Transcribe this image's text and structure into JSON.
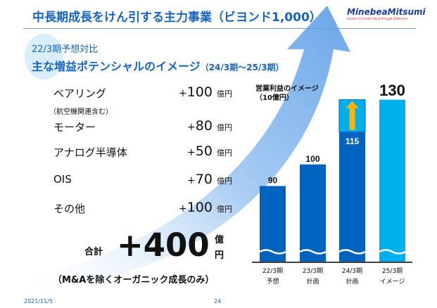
{
  "header": {
    "title": "中長期成長をけん引する主力事業（ビヨンド1,000）",
    "logo_name": "MinebeaMitsumi",
    "logo_tagline": "Passion to Create Value through Difference"
  },
  "subtitle1": "22/3期予想対比",
  "subtitle2": "主な増益ポテンシャルのイメージ",
  "subtitle2_period": "（24/3期～25/3期）",
  "items": [
    {
      "label": "ベアリング",
      "note": "（航空機関連含む）",
      "sign": "+",
      "value": "100",
      "unit": "億円"
    },
    {
      "label": "モーター",
      "sign": "+",
      "value": "80",
      "unit": "億円"
    },
    {
      "label": "アナログ半導体",
      "sign": "+",
      "value": "50",
      "unit": "億円"
    },
    {
      "label": "OIS",
      "sign": "+",
      "value": "70",
      "unit": "億円"
    },
    {
      "label": "その他",
      "sign": "+",
      "value": "100",
      "unit": "億円"
    }
  ],
  "total": {
    "label": "合計",
    "value": "+400",
    "unit1": "億",
    "unit2": "円"
  },
  "footnote": "（M&Aを除くオーガニック成長のみ）",
  "footer": {
    "date": "2021/11/5",
    "page": "24"
  },
  "colors": {
    "dark_bar": "#0063be",
    "light_bar": "#00b0ec",
    "arrow": "#ffb400",
    "title": "#1565c0"
  },
  "chart_data": {
    "type": "bar",
    "title": "営業利益のイメージ",
    "ylabel": "（10億円）",
    "categories": [
      [
        "22/3期",
        "予想"
      ],
      [
        "23/3期",
        "計画"
      ],
      [
        "24/3期",
        "計画"
      ],
      [
        "25/3期",
        "イメージ"
      ]
    ],
    "values": [
      90,
      100,
      115,
      130
    ],
    "labels": [
      "90",
      "100",
      "115",
      "130"
    ],
    "upside_on": "24/3期",
    "upside_to": 130,
    "axis_break": true
  }
}
